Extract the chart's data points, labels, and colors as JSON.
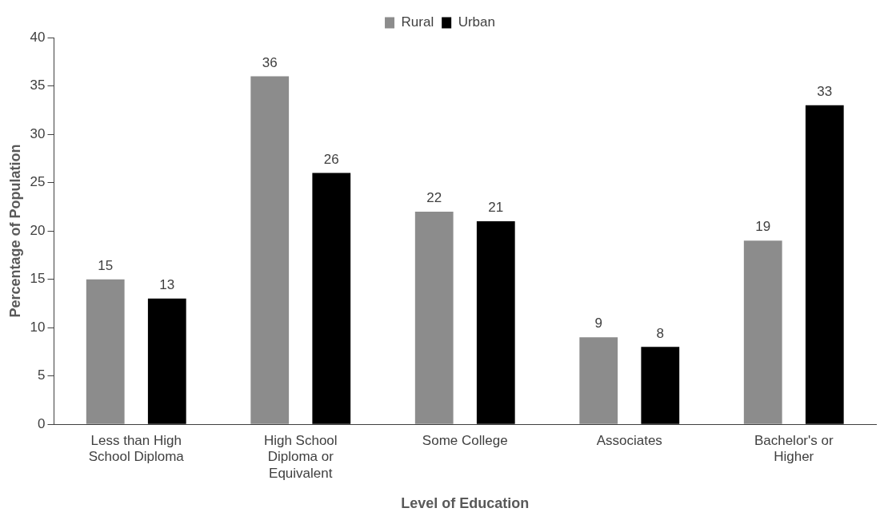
{
  "chart_data": {
    "type": "bar",
    "xlabel": "Level of Education",
    "ylabel": "Percentage of Population",
    "categories": [
      "Less than High School Diploma",
      "High School Diploma or Equivalent",
      "Some College",
      "Associates",
      "Bachelor's or Higher"
    ],
    "series": [
      {
        "name": "Rural",
        "color": "#8c8c8c",
        "values": [
          15,
          36,
          22,
          9,
          19
        ]
      },
      {
        "name": "Urban",
        "color": "#000000",
        "values": [
          13,
          26,
          21,
          8,
          33
        ]
      }
    ],
    "ylim": [
      0,
      40
    ],
    "yticks": [
      0,
      5,
      10,
      15,
      20,
      25,
      30,
      35,
      40
    ],
    "grid": false,
    "legend": "top",
    "data_labels": true
  }
}
